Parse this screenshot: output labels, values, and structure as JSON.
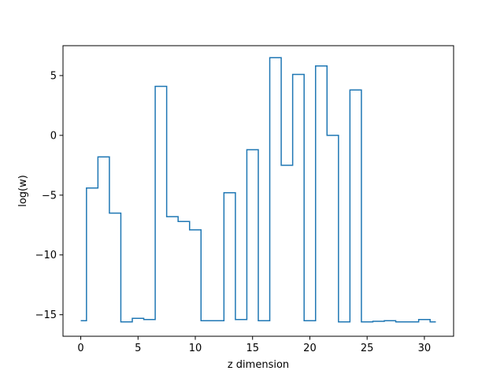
{
  "chart_data": {
    "type": "line",
    "drawstyle": "steps-mid",
    "title": "",
    "xlabel": "z dimension",
    "ylabel": "log(w)",
    "xlim": [
      -1.55,
      32.55
    ],
    "ylim": [
      -16.8,
      7.5
    ],
    "xticks": [
      0,
      5,
      10,
      15,
      20,
      25,
      30
    ],
    "yticks": [
      -15,
      -10,
      -5,
      0,
      5
    ],
    "xtick_labels": [
      "0",
      "5",
      "10",
      "15",
      "20",
      "25",
      "30"
    ],
    "ytick_labels": [
      "−15",
      "−10",
      "−5",
      "0",
      "5"
    ],
    "grid": false,
    "series": [
      {
        "color": "#1f77b4",
        "x": [
          0,
          1,
          2,
          3,
          4,
          5,
          6,
          7,
          8,
          9,
          10,
          11,
          12,
          13,
          14,
          15,
          16,
          17,
          18,
          19,
          20,
          21,
          22,
          23,
          24,
          25,
          26,
          27,
          28,
          29,
          30,
          31
        ],
        "y": [
          -15.5,
          -4.4,
          -1.8,
          -6.5,
          -15.6,
          -15.3,
          -15.4,
          4.1,
          -6.8,
          -7.2,
          -7.9,
          -15.5,
          -15.5,
          -4.8,
          -15.4,
          -1.2,
          -15.5,
          6.5,
          -2.5,
          5.1,
          -15.5,
          5.8,
          0.0,
          -15.6,
          3.8,
          -15.6,
          -15.55,
          -15.5,
          -15.6,
          -15.6,
          -15.4,
          -15.6
        ]
      }
    ]
  }
}
